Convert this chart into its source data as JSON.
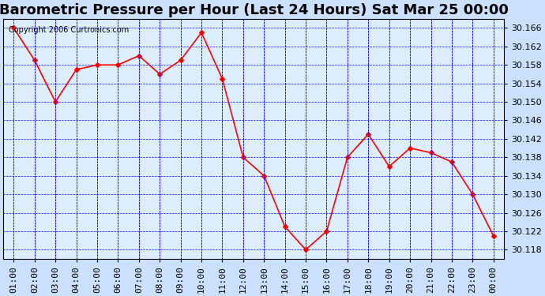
{
  "title": "Barometric Pressure per Hour (Last 24 Hours) Sat Mar 25 00:00",
  "copyright": "Copyright 2006 Curtronics.com",
  "hours": [
    "01:00",
    "02:00",
    "03:00",
    "04:00",
    "05:00",
    "06:00",
    "07:00",
    "08:00",
    "09:00",
    "10:00",
    "11:00",
    "12:00",
    "13:00",
    "14:00",
    "15:00",
    "16:00",
    "17:00",
    "18:00",
    "19:00",
    "20:00",
    "21:00",
    "22:00",
    "23:00",
    "00:00"
  ],
  "values": [
    30.166,
    30.159,
    30.15,
    30.157,
    30.158,
    30.158,
    30.16,
    30.156,
    30.159,
    30.165,
    30.155,
    30.138,
    30.134,
    30.123,
    30.118,
    30.122,
    30.138,
    30.143,
    30.136,
    30.14,
    30.139,
    30.137,
    30.13,
    30.121
  ],
  "ylim": [
    30.116,
    30.168
  ],
  "yticks": [
    30.118,
    30.122,
    30.126,
    30.13,
    30.134,
    30.138,
    30.142,
    30.146,
    30.15,
    30.154,
    30.158,
    30.162,
    30.166
  ],
  "line_color": "red",
  "marker": "D",
  "marker_size": 3,
  "bg_color": "#cce0ff",
  "plot_bg": "#ddeeff",
  "grid_color": "blue",
  "title_fontsize": 13,
  "tick_fontsize": 8,
  "copyright_fontsize": 7
}
